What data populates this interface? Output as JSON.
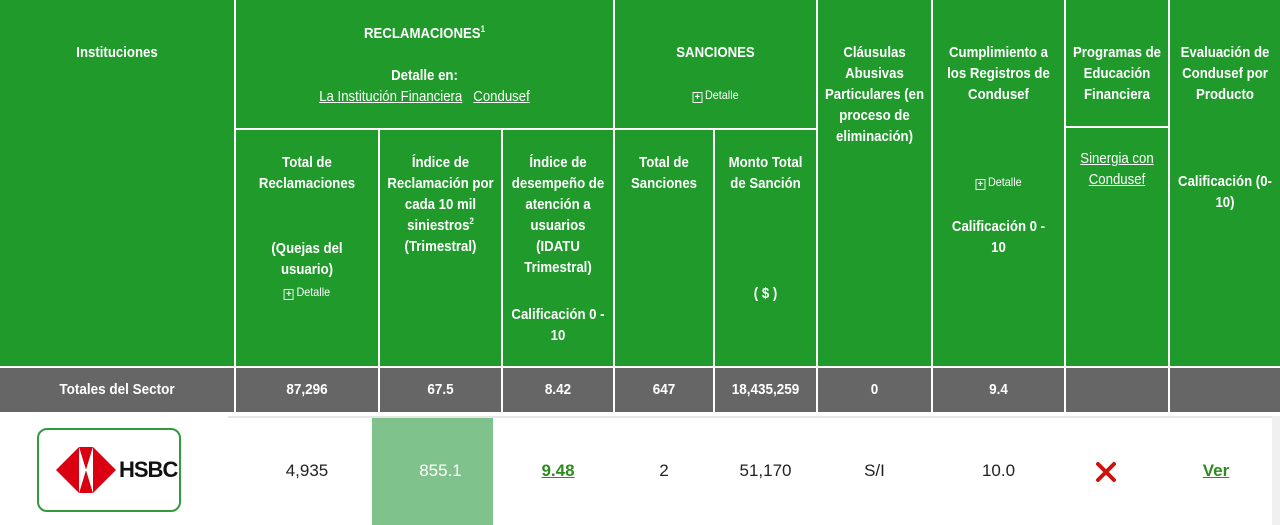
{
  "colors": {
    "header_green": "#1f9a2b",
    "totals_gray": "#666666",
    "highlight": "#7fc28c",
    "link_green": "#2e8b1f",
    "x_red": "#cc1111"
  },
  "header": {
    "instituciones": "Instituciones",
    "reclamaciones_title": "RECLAMACIONES",
    "reclamaciones_sup": "1",
    "detalle_en": "Detalle en:",
    "link_institucion": "La Institución Financiera",
    "link_condusef": "Condusef",
    "sanciones_title": "SANCIONES",
    "detalle_label": "Detalle",
    "clausulas": "Cláusulas Abusivas Particulares (en proceso de eliminación)",
    "cumplimiento": "Cumplimiento a los Registros de Condusef",
    "cumplimiento_calif": "Calificación 0 - 10",
    "programas": "Programas de Educación Financiera",
    "sinergia_link": "Sinergia con Condusef",
    "evaluacion": "Evaluación de Condusef por Producto",
    "evaluacion_calif": "Calificación (0-10)",
    "total_reclamaciones": "Total de Reclamaciones",
    "quejas": "(Quejas del usuario)",
    "indice_reclamacion": "Índice de Reclamación por cada 10 mil siniestros",
    "indice_sup": "2",
    "trimestral": "(Trimestral)",
    "indice_desempeno": "Índice de desempeño de atención a usuarios (IDATU Trimestral)",
    "idatu_calif": "Calificación 0 - 10",
    "total_sanciones": "Total de Sanciones",
    "monto_total": "Monto Total de Sanción",
    "monto_unit": "( $ )"
  },
  "totals": {
    "label": "Totales del Sector",
    "total_reclamaciones": "87,296",
    "indice_reclamacion": "67.5",
    "idatu": "8.42",
    "total_sanciones": "647",
    "monto": "18,435,259",
    "clausulas": "0",
    "cumplimiento": "9.4"
  },
  "row": {
    "logo_text": "HSBC",
    "total_reclamaciones": "4,935",
    "indice_reclamacion": "855.1",
    "idatu": "9.48",
    "total_sanciones": "2",
    "monto": "51,170",
    "clausulas": "S/I",
    "cumplimiento": "10.0",
    "programas_icon": "red-x-icon",
    "evaluacion_link": "Ver"
  }
}
